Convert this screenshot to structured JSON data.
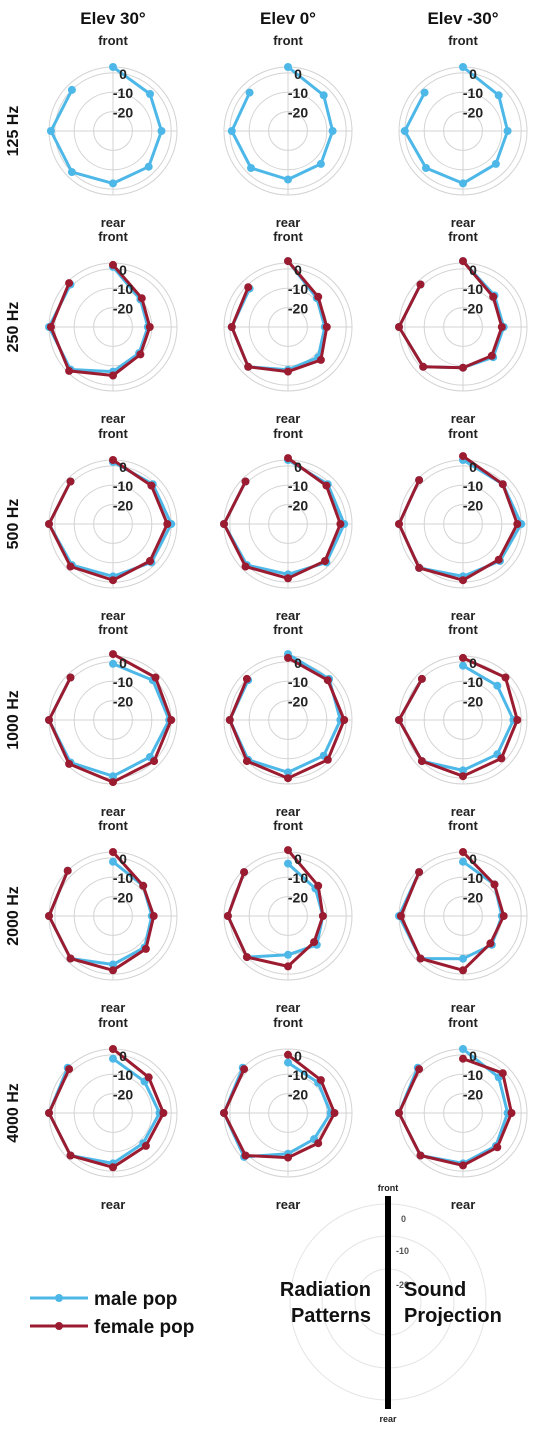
{
  "column_titles": [
    "Elev 30°",
    "Elev 0°",
    "Elev -30°"
  ],
  "row_labels": [
    "125 Hz",
    "250 Hz",
    "500 Hz",
    "1000 Hz",
    "2000 Hz",
    "4000 Hz"
  ],
  "direction_labels": {
    "front": "front",
    "rear": "rear"
  },
  "radial_ticks": [
    "0",
    "-10",
    "-20"
  ],
  "legend": [
    {
      "label": "male pop",
      "color": "#4db8e8"
    },
    {
      "label": "female pop",
      "color": "#9b1b30"
    }
  ],
  "colors": {
    "male": "#4db8e8",
    "female": "#9b1b30",
    "grid": "#d3d3d3"
  },
  "inset": {
    "front": "front",
    "rear": "rear",
    "ticks": [
      "0",
      "-10",
      "-20"
    ],
    "left_text": [
      "Radiation",
      "Patterns"
    ],
    "right_text": [
      "Sound",
      "Projection"
    ]
  },
  "chart_data": {
    "type": "polar-radar",
    "description_units": "relative level in dB, 0 = max; polar radius range [-30, 3]",
    "angles_deg": [
      0,
      45,
      90,
      135,
      180,
      225,
      270,
      315
    ],
    "rlim": [
      -30,
      3
    ],
    "panels": [
      {
        "row": "125 Hz",
        "col": "Elev 30°",
        "male": [
          3,
          -3,
          -5,
          -4,
          -3,
          0,
          2,
          0
        ]
      },
      {
        "row": "125 Hz",
        "col": "Elev 0°",
        "male": [
          3,
          -4,
          -7,
          -6,
          -5,
          -3,
          -1,
          -2
        ]
      },
      {
        "row": "125 Hz",
        "col": "Elev -30°",
        "male": [
          3,
          -4,
          -7,
          -6,
          -3,
          -3,
          0,
          -2
        ]
      },
      {
        "row": "250 Hz",
        "col": "Elev 30°",
        "male": [
          1,
          -10,
          -12,
          -11,
          -7,
          1,
          3,
          1
        ],
        "female": [
          2,
          -9,
          -11,
          -10,
          -5,
          2,
          2,
          2
        ]
      },
      {
        "row": "250 Hz",
        "col": "Elev 0°",
        "male": [
          4,
          -9,
          -11,
          -8,
          -8,
          -1,
          -1,
          -2
        ],
        "female": [
          4,
          -8,
          -10,
          -6,
          -7,
          -1,
          -1,
          -1
        ]
      },
      {
        "row": "250 Hz",
        "col": "Elev -30°",
        "male": [
          4,
          -7,
          -9,
          -8,
          -9,
          -1,
          3,
          1
        ],
        "female": [
          4,
          -8,
          -10,
          -9,
          -9,
          -1,
          3,
          1
        ]
      },
      {
        "row": "500 Hz",
        "col": "Elev 30°",
        "male": [
          2,
          -1,
          0,
          -2,
          -3,
          0,
          3,
          1
        ],
        "female": [
          3,
          -2,
          -2,
          -3,
          -1,
          1,
          3,
          1
        ]
      },
      {
        "row": "500 Hz",
        "col": "Elev 0°",
        "male": [
          3,
          -1,
          -1,
          -2,
          -4,
          0,
          3,
          1
        ],
        "female": [
          4,
          -2,
          -3,
          -3,
          -2,
          1,
          3,
          1
        ]
      },
      {
        "row": "500 Hz",
        "col": "Elev -30°",
        "male": [
          3,
          -1,
          0,
          -3,
          -3,
          2,
          3,
          2
        ],
        "female": [
          5,
          -1,
          -2,
          -4,
          -1,
          2,
          3,
          2
        ]
      },
      {
        "row": "1000 Hz",
        "col": "Elev 30°",
        "male": [
          -1,
          -1,
          -1,
          -3,
          -1,
          1,
          3,
          1
        ],
        "female": [
          4,
          1,
          0,
          0,
          2,
          2,
          3,
          1
        ]
      },
      {
        "row": "1000 Hz",
        "col": "Elev 0°",
        "male": [
          4,
          0,
          -3,
          -4,
          -3,
          -1,
          0,
          -1
        ],
        "female": [
          2,
          -1,
          -1,
          -1,
          0,
          0,
          0,
          0
        ]
      },
      {
        "row": "1000 Hz",
        "col": "Elev -30°",
        "male": [
          -2,
          -5,
          -4,
          -5,
          -4,
          0,
          3,
          0
        ],
        "female": [
          2,
          1,
          -2,
          -2,
          -1,
          0,
          3,
          0
        ]
      },
      {
        "row": "2000 Hz",
        "col": "Elev 30°",
        "male": [
          -2,
          -8,
          -10,
          -7,
          -5,
          1,
          3,
          3
        ],
        "female": [
          3,
          -8,
          -9,
          -6,
          -2,
          1,
          3,
          3
        ]
      },
      {
        "row": "2000 Hz",
        "col": "Elev 0°",
        "male": [
          -3,
          -10,
          -12,
          -9,
          -10,
          0,
          1,
          2
        ],
        "female": [
          4,
          -8,
          -12,
          -11,
          -4,
          0,
          1,
          2
        ]
      },
      {
        "row": "2000 Hz",
        "col": "Elev -30°",
        "male": [
          -2,
          -7,
          -10,
          -9,
          -8,
          1,
          3,
          2
        ],
        "female": [
          3,
          -7,
          -9,
          -10,
          -2,
          1,
          2,
          2
        ]
      },
      {
        "row": "4000 Hz",
        "col": "Elev 30°",
        "male": [
          -2,
          -7,
          -6,
          -8,
          -4,
          1,
          3,
          3
        ],
        "female": [
          3,
          -4,
          -4,
          -6,
          -2,
          1,
          3,
          2
        ]
      },
      {
        "row": "4000 Hz",
        "col": "Elev 0°",
        "male": [
          -4,
          -8,
          -8,
          -11,
          -9,
          2,
          3,
          3
        ],
        "female": [
          0,
          -6,
          -6,
          -8,
          -7,
          1,
          3,
          2
        ]
      },
      {
        "row": "4000 Hz",
        "col": "Elev -30°",
        "male": [
          3,
          -4,
          -7,
          -6,
          -4,
          1,
          3,
          3
        ],
        "female": [
          -2,
          -1,
          -5,
          -5,
          -3,
          1,
          3,
          2
        ]
      }
    ]
  }
}
